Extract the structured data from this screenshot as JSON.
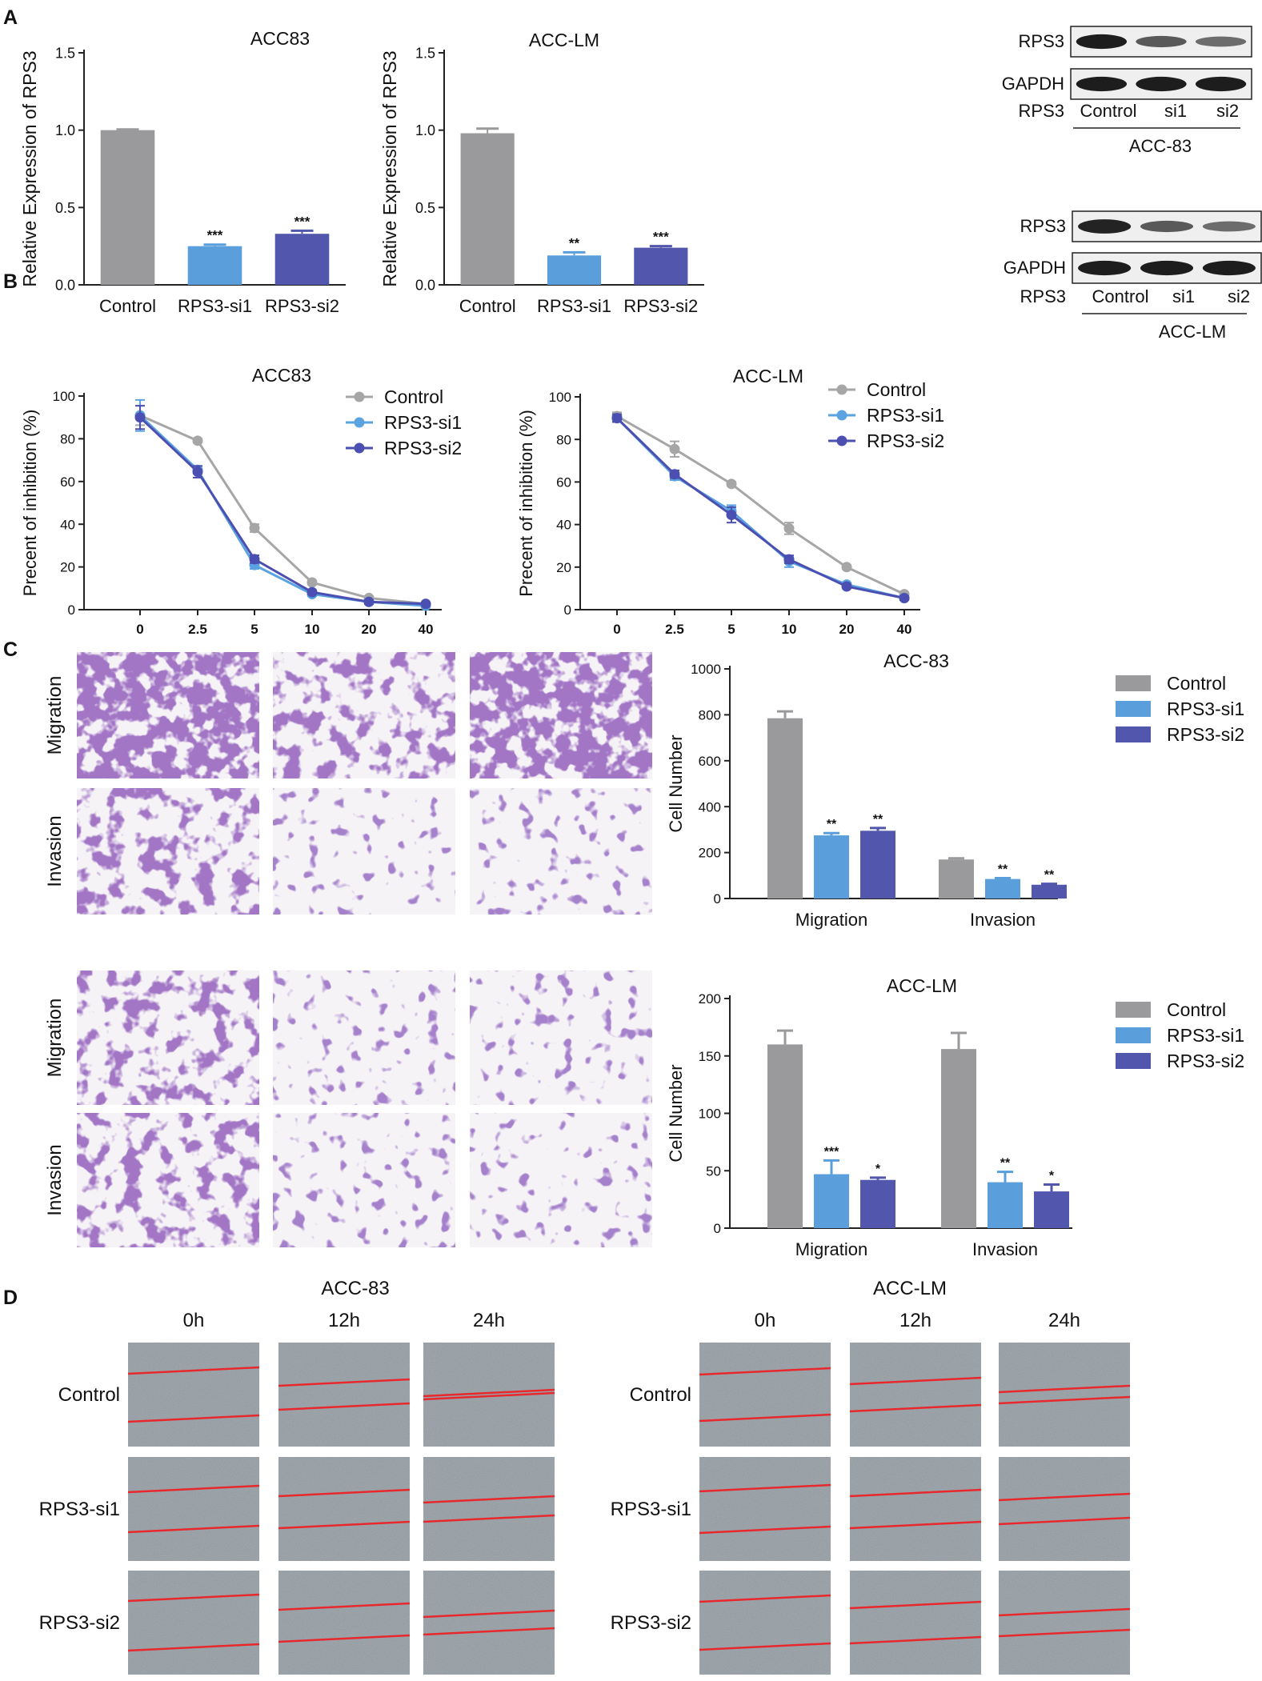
{
  "panels": {
    "a": "A",
    "b": "B",
    "c": "C",
    "d": "D"
  },
  "colors": {
    "control": "#9a9a9c",
    "si1": "#5a9fdc",
    "si2": "#5256ad",
    "line_control": "#a6a6a6",
    "line_si1": "#5aa2e0",
    "line_si2": "#4b4fb2",
    "scratch": "#e8282c",
    "stain": "#5b2f8e"
  },
  "conditions": [
    "Control",
    "RPS3-si1",
    "RPS3-si2"
  ],
  "timepoints": [
    "0h",
    "12h",
    "24h"
  ],
  "transwell_rows": [
    "Migration",
    "Invasion"
  ],
  "cell_lines": {
    "acc83": "ACC-83",
    "acc83_alt": "ACC83",
    "acclm": "ACC-LM"
  },
  "western_blots": [
    {
      "cell_line": "ACC-83",
      "proteins": [
        "RPS3",
        "GAPDH"
      ],
      "row_label": "RPS3",
      "lanes": [
        "Control",
        "si1",
        "si2"
      ],
      "band_intensity": {
        "RPS3": [
          1.0,
          0.55,
          0.4
        ],
        "GAPDH": [
          1.0,
          1.0,
          1.0
        ]
      }
    },
    {
      "cell_line": "ACC-LM",
      "proteins": [
        "RPS3",
        "GAPDH"
      ],
      "row_label": "RPS3",
      "lanes": [
        "Control",
        "si1",
        "si2"
      ],
      "band_intensity": {
        "RPS3": [
          0.95,
          0.55,
          0.4
        ],
        "GAPDH": [
          1.0,
          1.0,
          1.0
        ]
      }
    }
  ],
  "chart_data": [
    {
      "id": "A-ACC83",
      "type": "bar",
      "title": "ACC83",
      "ylabel": "Relative Expression of RPS3",
      "xlabel": "",
      "categories": [
        "Control",
        "RPS3-si1",
        "RPS3-si2"
      ],
      "values": [
        1.0,
        0.25,
        0.33
      ],
      "errors": [
        0.005,
        0.01,
        0.02
      ],
      "significance": [
        "",
        "***",
        "***"
      ],
      "ylim": [
        0,
        1.5
      ],
      "yticks": [
        "0.0",
        "0.5",
        "1.0",
        "1.5"
      ]
    },
    {
      "id": "A-ACCLM",
      "type": "bar",
      "title": "ACC-LM",
      "ylabel": "Relative Expression of RPS3",
      "xlabel": "",
      "categories": [
        "Control",
        "RPS3-si1",
        "RPS3-si2"
      ],
      "values": [
        0.98,
        0.19,
        0.24
      ],
      "errors": [
        0.03,
        0.02,
        0.01
      ],
      "significance": [
        "",
        "**",
        "***"
      ],
      "ylim": [
        0,
        1.5
      ],
      "yticks": [
        "0.0",
        "0.5",
        "1.0",
        "1.5"
      ]
    },
    {
      "id": "B-ACC83",
      "type": "line",
      "title": "ACC83",
      "ylabel": "Precent of inhibition (%)",
      "xlabel": "",
      "x": [
        "0",
        "2.5",
        "5",
        "10",
        "20",
        "40"
      ],
      "ylim": [
        0,
        110
      ],
      "yticks": [
        "0",
        "20",
        "40",
        "60",
        "80",
        "100"
      ],
      "series": [
        {
          "name": "Control",
          "values": [
            100,
            87,
            42,
            14,
            6,
            3
          ],
          "errors": [
            5,
            1,
            2,
            1,
            1,
            0.5
          ]
        },
        {
          "name": "RPS3-si1",
          "values": [
            100,
            72,
            23,
            8,
            4,
            2
          ],
          "errors": [
            8,
            2,
            2,
            1,
            1,
            0.5
          ]
        },
        {
          "name": "RPS3-si2",
          "values": [
            99,
            71,
            26,
            9,
            4,
            3
          ],
          "errors": [
            6,
            3,
            2,
            1,
            1,
            0.5
          ]
        }
      ]
    },
    {
      "id": "B-ACCLM",
      "type": "line",
      "title": "ACC-LM",
      "ylabel": "Precent of inhibition (%)",
      "xlabel": "",
      "x": [
        "0",
        "2.5",
        "5",
        "10",
        "20",
        "40"
      ],
      "ylim": [
        0,
        110
      ],
      "yticks": [
        "0",
        "20",
        "40",
        "60",
        "80",
        "100"
      ],
      "series": [
        {
          "name": "Control",
          "values": [
            100,
            83,
            65,
            42,
            22,
            8
          ],
          "errors": [
            2,
            4,
            1,
            3,
            1,
            1
          ]
        },
        {
          "name": "RPS3-si1",
          "values": [
            99,
            69,
            51,
            25,
            13,
            6
          ],
          "errors": [
            2,
            2,
            3,
            3,
            1,
            1
          ]
        },
        {
          "name": "RPS3-si2",
          "values": [
            99,
            70,
            49,
            26,
            12,
            6
          ],
          "errors": [
            2,
            2,
            4,
            2,
            1,
            1
          ]
        }
      ]
    },
    {
      "id": "C-ACC83",
      "type": "bar",
      "title": "ACC-83",
      "ylabel": "Cell Number",
      "xlabel": "",
      "categories": [
        "Migration",
        "Invasion"
      ],
      "ylim": [
        0,
        1000
      ],
      "yticks": [
        "0",
        "200",
        "400",
        "600",
        "800",
        "1000"
      ],
      "series": [
        {
          "name": "Control",
          "values": [
            785,
            170
          ],
          "errors": [
            30,
            5
          ],
          "significance": [
            "",
            ""
          ]
        },
        {
          "name": "RPS3-si1",
          "values": [
            275,
            85
          ],
          "errors": [
            10,
            4
          ],
          "significance": [
            "**",
            "**"
          ]
        },
        {
          "name": "RPS3-si2",
          "values": [
            295,
            60
          ],
          "errors": [
            12,
            4
          ],
          "significance": [
            "**",
            "**"
          ]
        }
      ]
    },
    {
      "id": "C-ACCLM",
      "type": "bar",
      "title": "ACC-LM",
      "ylabel": "Cell Number",
      "xlabel": "",
      "categories": [
        "Migration",
        "Invasion"
      ],
      "ylim": [
        0,
        200
      ],
      "yticks": [
        "0",
        "50",
        "100",
        "150",
        "200"
      ],
      "series": [
        {
          "name": "Control",
          "values": [
            160,
            156
          ],
          "errors": [
            12,
            14
          ],
          "significance": [
            "",
            ""
          ]
        },
        {
          "name": "RPS3-si1",
          "values": [
            47,
            40
          ],
          "errors": [
            12,
            9
          ],
          "significance": [
            "***",
            "**"
          ]
        },
        {
          "name": "RPS3-si2",
          "values": [
            42,
            32
          ],
          "errors": [
            2,
            6
          ],
          "significance": [
            "*",
            "*"
          ]
        }
      ]
    }
  ]
}
